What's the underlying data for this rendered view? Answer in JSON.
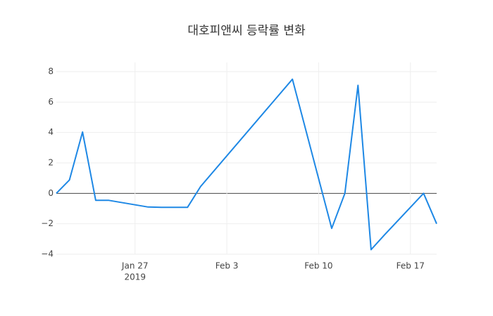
{
  "chart_data": {
    "type": "line",
    "title": "대호피앤씨 등락률 변화",
    "x": [
      "2019-01-21",
      "2019-01-22",
      "2019-01-23",
      "2019-01-24",
      "2019-01-25",
      "2019-01-28",
      "2019-01-29",
      "2019-01-30",
      "2019-01-31",
      "2019-02-01",
      "2019-02-08",
      "2019-02-11",
      "2019-02-12",
      "2019-02-13",
      "2019-02-14",
      "2019-02-15",
      "2019-02-18",
      "2019-02-19"
    ],
    "series": [
      {
        "color": "#1e88e5",
        "values": [
          0,
          0.88,
          4.03,
          -0.46,
          -0.46,
          -0.9,
          -0.92,
          -0.92,
          -0.92,
          0.45,
          7.5,
          -2.3,
          0,
          7.1,
          -3.7,
          -2.75,
          0,
          -2.0
        ]
      }
    ],
    "xlim": [
      "2019-01-21",
      "2019-02-19"
    ],
    "xticks": [
      {
        "value": "2019-01-27",
        "label": [
          "Jan 27",
          "2019"
        ]
      },
      {
        "value": "2019-02-03",
        "label": [
          "Feb 3"
        ]
      },
      {
        "value": "2019-02-10",
        "label": [
          "Feb 10"
        ]
      },
      {
        "value": "2019-02-17",
        "label": [
          "Feb 17"
        ]
      }
    ],
    "ylim": [
      -4,
      8.6
    ],
    "yticks": [
      {
        "value": -4,
        "label": "−4"
      },
      {
        "value": -2,
        "label": "−2"
      },
      {
        "value": 0,
        "label": "0"
      },
      2,
      4,
      6,
      8
    ],
    "grid": true,
    "zeroline": true
  }
}
